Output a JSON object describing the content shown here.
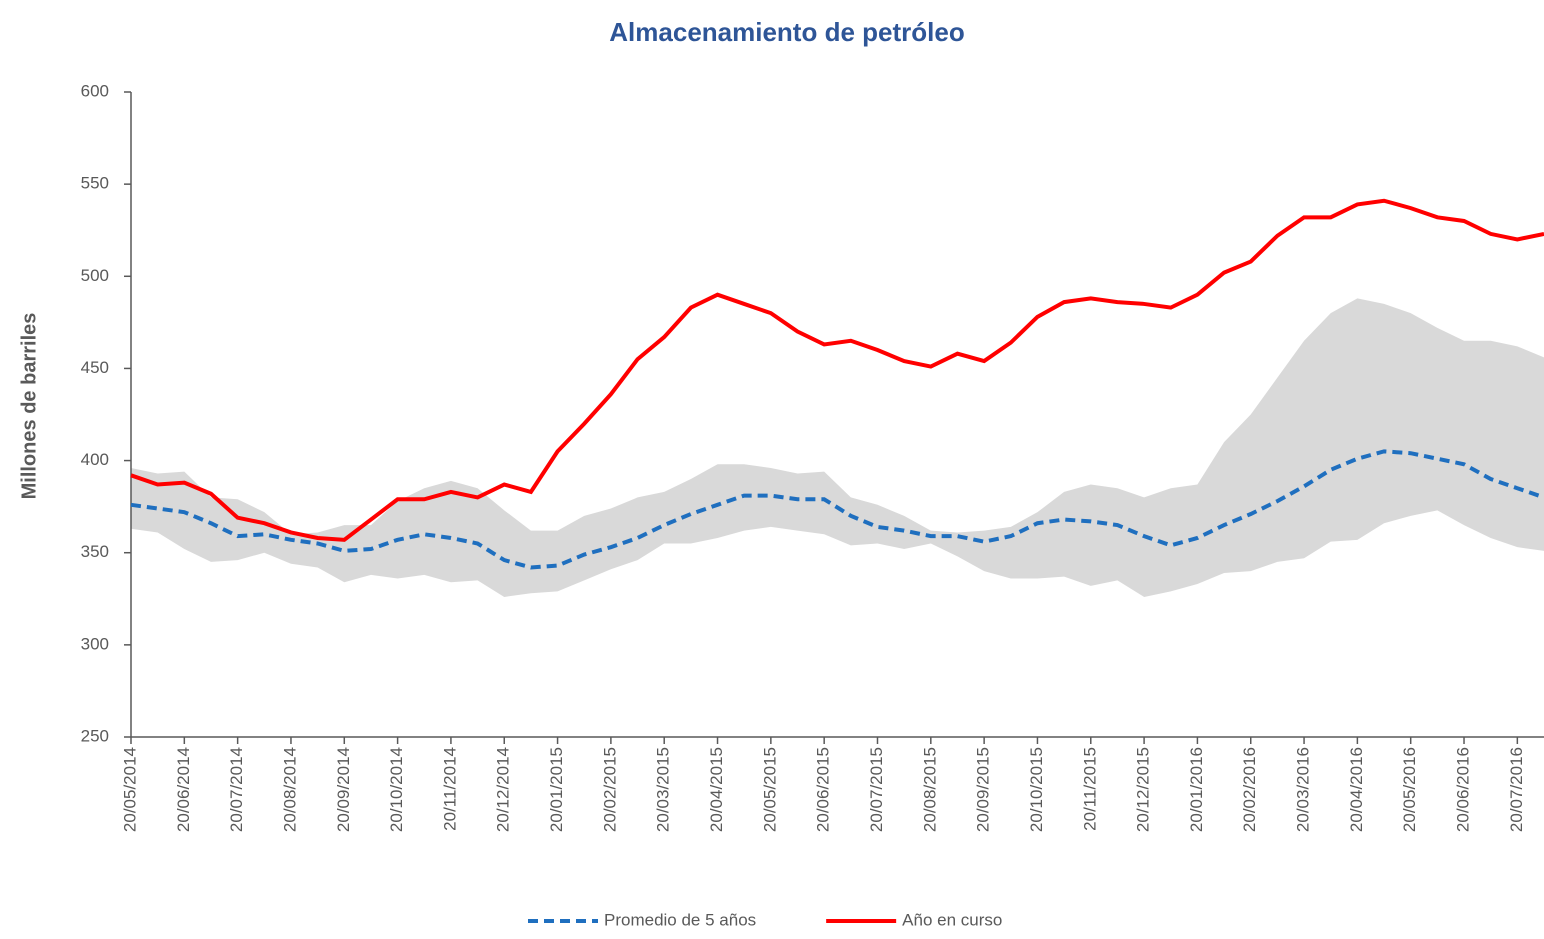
{
  "chart_data": {
    "type": "line",
    "title": "Almacenamiento de petróleo",
    "y_label": "Millones de barriles",
    "categories": [
      "20/05/2014",
      null,
      "20/06/2014",
      null,
      "20/07/2014",
      null,
      "20/08/2014",
      null,
      "20/09/2014",
      null,
      "20/10/2014",
      null,
      "20/11/2014",
      null,
      "20/12/2014",
      null,
      "20/01/2015",
      null,
      "20/02/2015",
      null,
      "20/03/2015",
      null,
      "20/04/2015",
      null,
      "20/05/2015",
      null,
      "20/06/2015",
      null,
      "20/07/2015",
      null,
      "20/08/2015",
      null,
      "20/09/2015",
      null,
      "20/10/2015",
      null,
      "20/11/2015",
      null,
      "20/12/2015",
      null,
      "20/01/2016",
      null,
      "20/02/2016",
      null,
      "20/03/2016",
      null,
      "20/04/2016",
      null,
      "20/05/2016",
      null,
      "20/06/2016",
      null,
      "20/07/2016",
      null
    ],
    "band": {
      "color": "#d9d9d9",
      "upper": [
        396,
        393,
        394,
        380,
        379,
        372,
        360,
        361,
        365,
        365,
        378,
        385,
        389,
        385,
        373,
        362,
        362,
        370,
        374,
        380,
        383,
        390,
        398,
        398,
        396,
        393,
        394,
        380,
        376,
        370,
        362,
        361,
        362,
        364,
        372,
        383,
        387,
        385,
        380,
        385,
        387,
        410,
        425,
        445,
        465,
        480,
        488,
        485,
        480,
        472,
        465,
        465,
        462,
        456
      ],
      "lower": [
        363,
        361,
        352,
        345,
        346,
        350,
        344,
        342,
        334,
        338,
        336,
        338,
        334,
        335,
        326,
        328,
        329,
        335,
        341,
        346,
        355,
        355,
        358,
        362,
        364,
        362,
        360,
        354,
        355,
        352,
        355,
        348,
        340,
        336,
        336,
        337,
        332,
        335,
        326,
        329,
        333,
        339,
        340,
        345,
        347,
        356,
        357,
        366,
        370,
        373,
        365,
        358,
        353,
        351
      ]
    },
    "series": [
      {
        "name": "Promedio de 5 años",
        "color": "#1f6fbf",
        "line_style": "dashed",
        "values": [
          376,
          374,
          372,
          366,
          359,
          360,
          357,
          355,
          351,
          352,
          357,
          360,
          358,
          355,
          346,
          342,
          343,
          349,
          353,
          358,
          365,
          371,
          376,
          381,
          381,
          379,
          379,
          370,
          364,
          362,
          359,
          359,
          356,
          359,
          366,
          368,
          367,
          365,
          359,
          354,
          358,
          365,
          371,
          378,
          386,
          395,
          401,
          405,
          404,
          401,
          398,
          390,
          385,
          380
        ]
      },
      {
        "name": "Año en curso",
        "color": "#ff0000",
        "line_style": "solid",
        "values": [
          392,
          387,
          388,
          382,
          369,
          366,
          361,
          358,
          357,
          368,
          379,
          379,
          383,
          380,
          387,
          383,
          405,
          420,
          436,
          455,
          467,
          483,
          490,
          485,
          480,
          470,
          463,
          465,
          460,
          454,
          451,
          458,
          454,
          464,
          478,
          486,
          488,
          486,
          485,
          483,
          490,
          502,
          508,
          522,
          532,
          532,
          539,
          541,
          537,
          532,
          530,
          523,
          520,
          523
        ]
      }
    ],
    "ylim": [
      250,
      600
    ],
    "yticks": [
      250,
      300,
      350,
      400,
      450,
      500,
      550,
      600
    ],
    "grid": false
  }
}
